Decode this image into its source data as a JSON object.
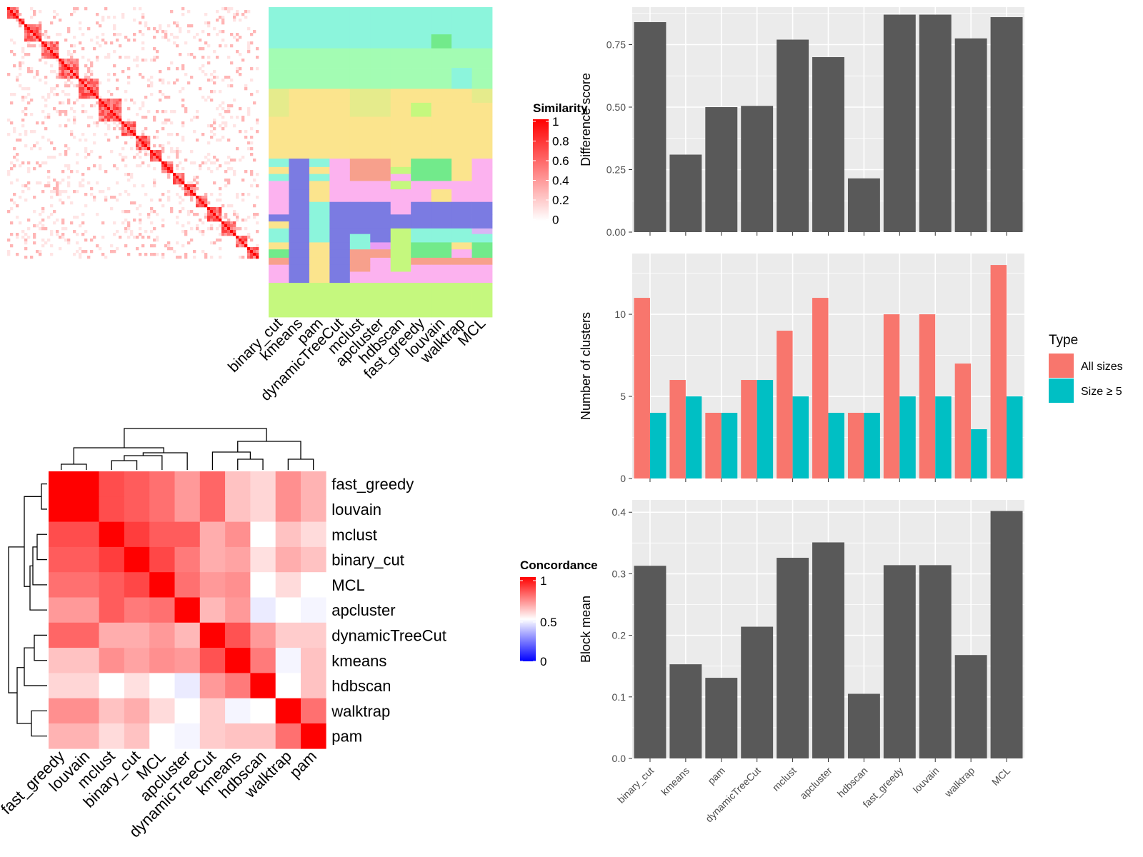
{
  "methods": [
    "binary_cut",
    "kmeans",
    "pam",
    "dynamicTreeCut",
    "mclust",
    "apcluster",
    "hdbscan",
    "fast_greedy",
    "louvain",
    "walktrap",
    "MCL"
  ],
  "colors": {
    "bar": "#595959",
    "panel_bg": "#ebebeb",
    "grid": "#ffffff",
    "all_sizes": "#f8766d",
    "size_ge5": "#00bfc4",
    "heat_high": "#ff0000",
    "heat_mid": "#ffffff",
    "heat_low": "#0000ff"
  },
  "similarity_heatmap": {
    "legend_title": "Similarity",
    "legend_labels": [
      "1",
      "0.8",
      "0.6",
      "0.4",
      "0.2",
      "0"
    ]
  },
  "cluster_assignment": {
    "columns": [
      "binary_cut",
      "kmeans",
      "pam",
      "dynamicTreeCut",
      "mclust",
      "apcluster",
      "hdbscan",
      "fast_greedy",
      "louvain",
      "walktrap",
      "MCL"
    ]
  },
  "concordance_heatmap": {
    "legend_title": "Concordance",
    "legend_labels": [
      "1",
      "0.5",
      "0"
    ],
    "order": [
      "fast_greedy",
      "louvain",
      "mclust",
      "binary_cut",
      "MCL",
      "apcluster",
      "dynamicTreeCut",
      "kmeans",
      "hdbscan",
      "walktrap",
      "pam"
    ]
  },
  "chart_data": [
    {
      "type": "bar",
      "categories": [
        "binary_cut",
        "kmeans",
        "pam",
        "dynamicTreeCut",
        "mclust",
        "apcluster",
        "hdbscan",
        "fast_greedy",
        "louvain",
        "walktrap",
        "MCL"
      ],
      "values": [
        0.84,
        0.31,
        0.5,
        0.505,
        0.77,
        0.7,
        0.215,
        0.87,
        0.87,
        0.775,
        0.86
      ],
      "ylabel": "Difference score",
      "ylim": [
        0,
        0.9
      ],
      "yticks": [
        "0.00",
        "0.25",
        "0.50",
        "0.75"
      ],
      "grid": true
    },
    {
      "type": "bar",
      "categories": [
        "binary_cut",
        "kmeans",
        "pam",
        "dynamicTreeCut",
        "mclust",
        "apcluster",
        "hdbscan",
        "fast_greedy",
        "louvain",
        "walktrap",
        "MCL"
      ],
      "series": [
        {
          "name": "All sizes",
          "values": [
            11,
            6,
            4,
            6,
            9,
            11,
            4,
            10,
            10,
            7,
            13
          ]
        },
        {
          "name": "Size ≥ 5",
          "values": [
            4,
            5,
            4,
            6,
            5,
            4,
            4,
            5,
            5,
            3,
            5
          ]
        }
      ],
      "ylabel": "Number of clusters",
      "ylim": [
        0,
        13.7
      ],
      "yticks": [
        "0",
        "5",
        "10"
      ],
      "legend_title": "Type",
      "legend_position": "right",
      "grid": true
    },
    {
      "type": "bar",
      "categories": [
        "binary_cut",
        "kmeans",
        "pam",
        "dynamicTreeCut",
        "mclust",
        "apcluster",
        "hdbscan",
        "fast_greedy",
        "louvain",
        "walktrap",
        "MCL"
      ],
      "values": [
        0.313,
        0.153,
        0.131,
        0.214,
        0.326,
        0.351,
        0.105,
        0.314,
        0.314,
        0.168,
        0.402
      ],
      "ylabel": "Block mean",
      "ylim": [
        0,
        0.42
      ],
      "yticks": [
        "0.0",
        "0.1",
        "0.2",
        "0.3",
        "0.4"
      ],
      "grid": true
    }
  ]
}
